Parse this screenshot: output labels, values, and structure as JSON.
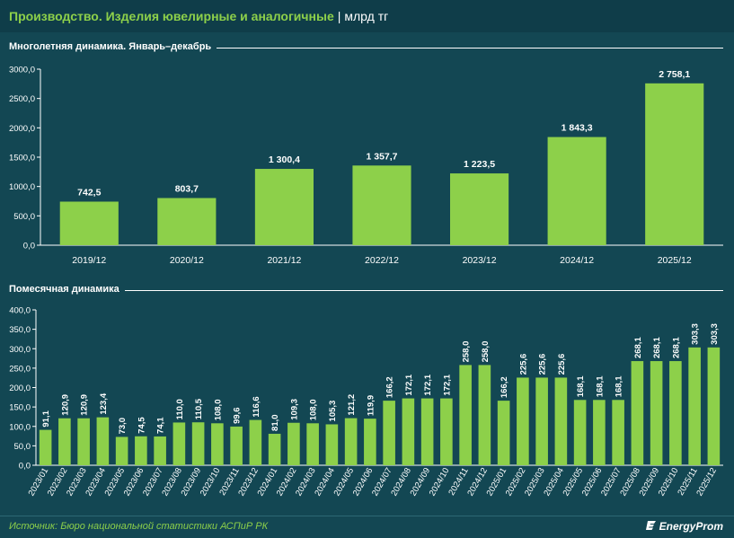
{
  "header": {
    "title": "Производство. Изделия ювелирные и аналогичные",
    "separator": "|",
    "unit": "млрд тг"
  },
  "chart_data": [
    {
      "type": "bar",
      "title": "Многолетняя динамика. Январь–декабрь",
      "categories": [
        "2019/12",
        "2020/12",
        "2021/12",
        "2022/12",
        "2023/12",
        "2024/12",
        "2025/12"
      ],
      "values": [
        742.5,
        803.7,
        1300.4,
        1357.7,
        1223.5,
        1843.3,
        2758.1
      ],
      "value_labels": [
        "742,5",
        "803,7",
        "1 300,4",
        "1 357,7",
        "1 223,5",
        "1 843,3",
        "2 758,1"
      ],
      "ylim": [
        0,
        3000
      ],
      "yticks": [
        "0,0",
        "500,0",
        "1000,0",
        "1500,0",
        "2000,0",
        "2500,0",
        "3000,0"
      ],
      "bar_color": "#8dd04a"
    },
    {
      "type": "bar",
      "title": "Помесячная динамика",
      "categories": [
        "2023/01",
        "2023/02",
        "2023/03",
        "2023/04",
        "2023/05",
        "2023/06",
        "2023/07",
        "2023/08",
        "2023/09",
        "2023/10",
        "2023/11",
        "2023/12",
        "2024/01",
        "2024/02",
        "2024/03",
        "2024/04",
        "2024/05",
        "2024/06",
        "2024/07",
        "2024/08",
        "2024/09",
        "2024/10",
        "2024/11",
        "2024/12",
        "2025/01",
        "2025/02",
        "2025/03",
        "2025/04",
        "2025/05",
        "2025/06",
        "2025/07",
        "2025/08",
        "2025/09",
        "2025/10",
        "2025/11",
        "2025/12"
      ],
      "values": [
        91.1,
        120.9,
        120.9,
        123.4,
        73.0,
        74.5,
        74.1,
        110.0,
        110.5,
        108.0,
        99.6,
        116.6,
        81.0,
        109.3,
        108.0,
        105.3,
        121.2,
        119.9,
        166.2,
        172.1,
        172.1,
        172.1,
        258.0,
        258.0,
        166.2,
        225.6,
        225.6,
        225.6,
        168.1,
        168.1,
        168.1,
        268.1,
        268.1,
        268.1,
        303.3,
        303.3
      ],
      "value_labels": [
        "91,1",
        "120,9",
        "120,9",
        "123,4",
        "73,0",
        "74,5",
        "74,1",
        "110,0",
        "110,5",
        "108,0",
        "99,6",
        "116,6",
        "81,0",
        "109,3",
        "108,0",
        "105,3",
        "121,2",
        "119,9",
        "166,2",
        "172,1",
        "172,1",
        "172,1",
        "258,0",
        "258,0",
        "166,2",
        "225,6",
        "225,6",
        "225,6",
        "168,1",
        "168,1",
        "168,1",
        "268,1",
        "268,1",
        "268,1",
        "303,3",
        "303,3"
      ],
      "ylim": [
        0,
        400
      ],
      "yticks": [
        "0,0",
        "50,0",
        "100,0",
        "150,0",
        "200,0",
        "250,0",
        "300,0",
        "350,0",
        "400,0"
      ],
      "bar_color": "#8dd04a"
    }
  ],
  "footer": {
    "source": "Источник: Бюро национальной статистики АСПиР РК",
    "brand": "EnergyProm"
  }
}
